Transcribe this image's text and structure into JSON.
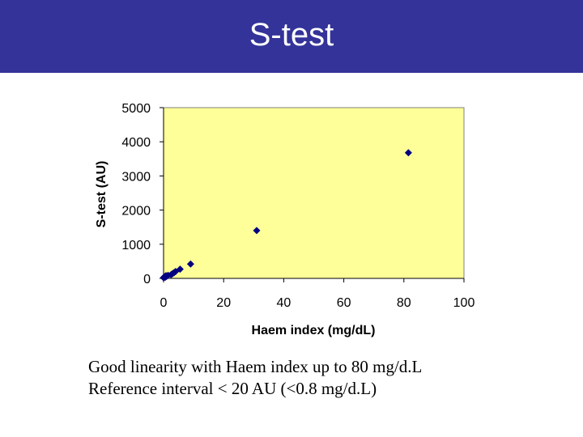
{
  "header": {
    "title": "S-test",
    "background": "#333399"
  },
  "chart_data": {
    "type": "scatter",
    "xlabel": "Haem index (mg/dL)",
    "ylabel": "S-test (AU)",
    "xlim": [
      0,
      100
    ],
    "ylim": [
      0,
      5000
    ],
    "x_ticks": [
      0,
      20,
      40,
      60,
      80,
      100
    ],
    "y_ticks": [
      0,
      1000,
      2000,
      3000,
      4000,
      5000
    ],
    "x_tick_labels": [
      "0",
      "20",
      "40",
      "60",
      "80",
      "100"
    ],
    "y_tick_labels": [
      "0",
      "1000",
      "2000",
      "3000",
      "4000",
      "5000"
    ],
    "grid": false,
    "plot_background": "#FFFF99",
    "marker_color": "#000080",
    "series": [
      {
        "points": [
          {
            "x": 0,
            "y": 20
          },
          {
            "x": 0.3,
            "y": 50
          },
          {
            "x": 0.5,
            "y": 30
          },
          {
            "x": 0.8,
            "y": 80
          },
          {
            "x": 1,
            "y": 60
          },
          {
            "x": 1.5,
            "y": 90
          },
          {
            "x": 2.5,
            "y": 110
          },
          {
            "x": 3,
            "y": 140
          },
          {
            "x": 3.5,
            "y": 170
          },
          {
            "x": 4,
            "y": 200
          },
          {
            "x": 5.5,
            "y": 270
          },
          {
            "x": 9,
            "y": 420
          },
          {
            "x": 31,
            "y": 1400
          },
          {
            "x": 81.5,
            "y": 3680
          }
        ]
      }
    ]
  },
  "caption": {
    "line1": "Good linearity with Haem index up to 80 mg/d.L",
    "line2": "Reference interval < 20 AU (<0.8 mg/d.L)"
  }
}
